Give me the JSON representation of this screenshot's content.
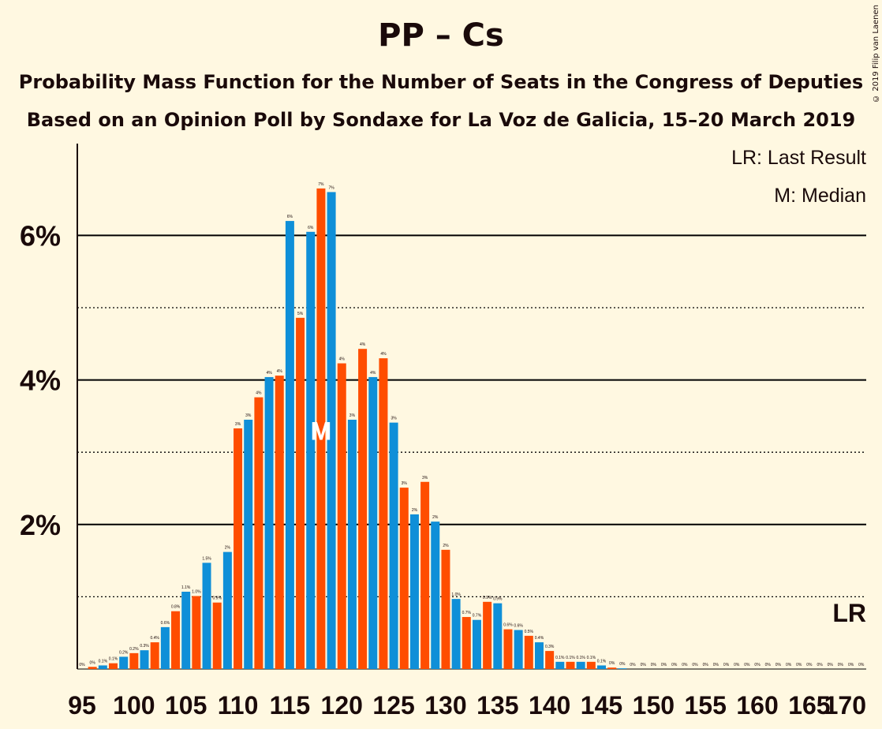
{
  "title": "PP – Cs",
  "subtitle1": "Probability Mass Function for the Number of Seats in the Congress of Deputies",
  "subtitle2": "Based on an Opinion Poll by Sondaxe for La Voz de Galicia, 15–20 March 2019",
  "copyright": "© 2019 Filip van Laenen",
  "legend": {
    "lr": "LR: Last Result",
    "m": "M: Median"
  },
  "lr_marker": "LR",
  "median_marker": "M",
  "colors": {
    "pp": "#0F8FD8",
    "cs": "#FF4D00",
    "background": "#FFF8E1"
  },
  "chart_data": {
    "type": "bar",
    "xlabel": "",
    "ylabel": "",
    "ylim": [
      0,
      7.2
    ],
    "y_ticks": [
      {
        "value": 2,
        "label": "2%"
      },
      {
        "value": 4,
        "label": "4%"
      },
      {
        "value": 6,
        "label": "6%"
      }
    ],
    "x_ticks": [
      "95",
      "100",
      "105",
      "110",
      "115",
      "120",
      "125",
      "130",
      "135",
      "140",
      "145",
      "150",
      "155",
      "160",
      "165",
      "170"
    ],
    "median": 118,
    "last_result": 170,
    "grid": "solid lines at 2%, 4%, 6%; dotted lines at 1%, 3%, 5%",
    "bars": [
      {
        "seats": 95,
        "value": 0.0,
        "label": "0%"
      },
      {
        "seats": 96,
        "value": 0.03,
        "label": "0%"
      },
      {
        "seats": 97,
        "value": 0.05,
        "label": "0.1%"
      },
      {
        "seats": 98,
        "value": 0.08,
        "label": "0.1%"
      },
      {
        "seats": 99,
        "value": 0.17,
        "label": "0.2%"
      },
      {
        "seats": 100,
        "value": 0.22,
        "label": "0.2%"
      },
      {
        "seats": 101,
        "value": 0.26,
        "label": "0.3%"
      },
      {
        "seats": 102,
        "value": 0.37,
        "label": "0.4%"
      },
      {
        "seats": 103,
        "value": 0.58,
        "label": "0.6%"
      },
      {
        "seats": 104,
        "value": 0.8,
        "label": "0.8%"
      },
      {
        "seats": 105,
        "value": 1.07,
        "label": "1.1%"
      },
      {
        "seats": 106,
        "value": 1.01,
        "label": "1.0%"
      },
      {
        "seats": 107,
        "value": 1.47,
        "label": "1.5%"
      },
      {
        "seats": 108,
        "value": 0.92,
        "label": "0.9%"
      },
      {
        "seats": 109,
        "value": 1.62,
        "label": "2%"
      },
      {
        "seats": 110,
        "value": 3.33,
        "label": "3%"
      },
      {
        "seats": 111,
        "value": 3.45,
        "label": "3%"
      },
      {
        "seats": 112,
        "value": 3.76,
        "label": "4%"
      },
      {
        "seats": 113,
        "value": 4.04,
        "label": "4%"
      },
      {
        "seats": 114,
        "value": 4.06,
        "label": "4%"
      },
      {
        "seats": 115,
        "value": 6.2,
        "label": "6%"
      },
      {
        "seats": 116,
        "value": 4.86,
        "label": "5%"
      },
      {
        "seats": 117,
        "value": 6.05,
        "label": "6%"
      },
      {
        "seats": 118,
        "value": 6.65,
        "label": "7%"
      },
      {
        "seats": 119,
        "value": 6.6,
        "label": "7%"
      },
      {
        "seats": 120,
        "value": 4.23,
        "label": "4%"
      },
      {
        "seats": 121,
        "value": 3.45,
        "label": "3%"
      },
      {
        "seats": 122,
        "value": 4.43,
        "label": "4%"
      },
      {
        "seats": 123,
        "value": 4.04,
        "label": "4%"
      },
      {
        "seats": 124,
        "value": 4.3,
        "label": "4%"
      },
      {
        "seats": 125,
        "value": 3.41,
        "label": "3%"
      },
      {
        "seats": 126,
        "value": 2.51,
        "label": "3%"
      },
      {
        "seats": 127,
        "value": 2.14,
        "label": "2%"
      },
      {
        "seats": 128,
        "value": 2.59,
        "label": "3%"
      },
      {
        "seats": 129,
        "value": 2.04,
        "label": "2%"
      },
      {
        "seats": 130,
        "value": 1.65,
        "label": "2%"
      },
      {
        "seats": 131,
        "value": 0.97,
        "label": "1.0%"
      },
      {
        "seats": 132,
        "value": 0.72,
        "label": "0.7%"
      },
      {
        "seats": 133,
        "value": 0.68,
        "label": "0.7%"
      },
      {
        "seats": 134,
        "value": 0.93,
        "label": "0.9%"
      },
      {
        "seats": 135,
        "value": 0.91,
        "label": "0.9%"
      },
      {
        "seats": 136,
        "value": 0.55,
        "label": "0.6%"
      },
      {
        "seats": 137,
        "value": 0.54,
        "label": "0.6%"
      },
      {
        "seats": 138,
        "value": 0.46,
        "label": "0.5%"
      },
      {
        "seats": 139,
        "value": 0.37,
        "label": "0.4%"
      },
      {
        "seats": 140,
        "value": 0.25,
        "label": "0.3%"
      },
      {
        "seats": 141,
        "value": 0.1,
        "label": "0.1%"
      },
      {
        "seats": 142,
        "value": 0.1,
        "label": "0.1%"
      },
      {
        "seats": 143,
        "value": 0.1,
        "label": "0.1%"
      },
      {
        "seats": 144,
        "value": 0.1,
        "label": "0.1%"
      },
      {
        "seats": 145,
        "value": 0.05,
        "label": "0.1%"
      },
      {
        "seats": 146,
        "value": 0.02,
        "label": "0%"
      },
      {
        "seats": 147,
        "value": 0.01,
        "label": "0%"
      },
      {
        "seats": 148,
        "value": 0.0,
        "label": "0%"
      },
      {
        "seats": 149,
        "value": 0.0,
        "label": "0%"
      },
      {
        "seats": 150,
        "value": 0.0,
        "label": "0%"
      },
      {
        "seats": 151,
        "value": 0.0,
        "label": "0%"
      },
      {
        "seats": 152,
        "value": 0.0,
        "label": "0%"
      },
      {
        "seats": 153,
        "value": 0.0,
        "label": "0%"
      },
      {
        "seats": 154,
        "value": 0.0,
        "label": "0%"
      },
      {
        "seats": 155,
        "value": 0.0,
        "label": "0%"
      },
      {
        "seats": 156,
        "value": 0.0,
        "label": "0%"
      },
      {
        "seats": 157,
        "value": 0.0,
        "label": "0%"
      },
      {
        "seats": 158,
        "value": 0.0,
        "label": "0%"
      },
      {
        "seats": 159,
        "value": 0.0,
        "label": "0%"
      },
      {
        "seats": 160,
        "value": 0.0,
        "label": "0%"
      },
      {
        "seats": 161,
        "value": 0.0,
        "label": "0%"
      },
      {
        "seats": 162,
        "value": 0.0,
        "label": "0%"
      },
      {
        "seats": 163,
        "value": 0.0,
        "label": "0%"
      },
      {
        "seats": 164,
        "value": 0.0,
        "label": "0%"
      },
      {
        "seats": 165,
        "value": 0.0,
        "label": "0%"
      },
      {
        "seats": 166,
        "value": 0.0,
        "label": "0%"
      },
      {
        "seats": 167,
        "value": 0.0,
        "label": "0%"
      },
      {
        "seats": 168,
        "value": 0.0,
        "label": "0%"
      },
      {
        "seats": 169,
        "value": 0.0,
        "label": "0%"
      },
      {
        "seats": 170,
        "value": 0.0,
        "label": "0%"
      }
    ]
  }
}
